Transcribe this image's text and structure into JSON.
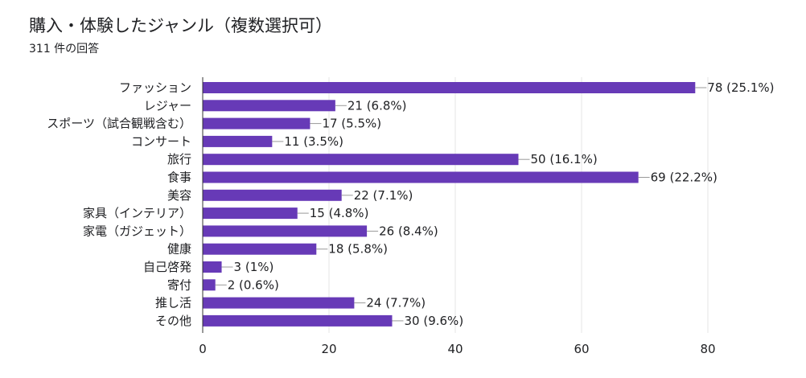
{
  "title": "購入・体験したジャンル（複数選択可）",
  "subtitle": "311 件の回答",
  "colors": {
    "bar": "#673ab7",
    "grid": "#e6e6e6",
    "axis": "#333333",
    "leader": "#999999",
    "text": "#202124"
  },
  "chart_data": {
    "type": "bar",
    "orientation": "horizontal",
    "categories": [
      "ファッション",
      "レジャー",
      "スポーツ（試合観戦含む）",
      "コンサート",
      "旅行",
      "食事",
      "美容",
      "家具（インテリア）",
      "家電（ガジェット）",
      "健康",
      "自己啓発",
      "寄付",
      "推し活",
      "その他"
    ],
    "values": [
      78,
      21,
      17,
      11,
      50,
      69,
      22,
      15,
      26,
      18,
      3,
      2,
      24,
      30
    ],
    "value_labels": [
      "78 (25.1%)",
      "21 (6.8%)",
      "17 (5.5%)",
      "11 (3.5%)",
      "50 (16.1%)",
      "69 (22.2%)",
      "22 (7.1%)",
      "15 (4.8%)",
      "26 (8.4%)",
      "18 (5.8%)",
      "3 (1%)",
      "2 (0.6%)",
      "24 (7.7%)",
      "30 (9.6%)"
    ],
    "xlim": [
      0,
      80
    ],
    "xticks": [
      0,
      20,
      40,
      60,
      80
    ],
    "xlabel": "",
    "ylabel": "",
    "grid": true,
    "legend": false
  }
}
